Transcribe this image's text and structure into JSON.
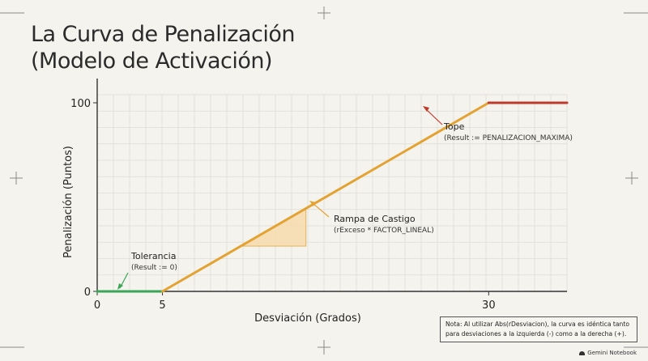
{
  "title_lines": [
    "La Curva de Penalización",
    "(Modelo de Activación)"
  ],
  "chart_data": {
    "type": "line",
    "xlabel": "Desviación (Grados)",
    "ylabel": "Penalización (Puntos)",
    "xlim": [
      0,
      36
    ],
    "ylim": [
      0,
      100
    ],
    "x_ticks": [
      "0",
      "5",
      "30"
    ],
    "y_ticks": [
      "0",
      "100"
    ],
    "grid": true,
    "segments": [
      {
        "name": "Tolerancia",
        "color": "#3aa655",
        "x": [
          0,
          5
        ],
        "y": [
          0,
          0
        ]
      },
      {
        "name": "Rampa de Castigo",
        "color": "#e3a232",
        "x": [
          5,
          30
        ],
        "y": [
          0,
          100
        ]
      },
      {
        "name": "Tope",
        "color": "#c0392b",
        "x": [
          30,
          36
        ],
        "y": [
          100,
          100
        ]
      }
    ],
    "highlight_triangle": {
      "x": [
        11,
        16
      ],
      "y": [
        24,
        44
      ],
      "color": "#f7dcb0"
    },
    "annotations": [
      {
        "title": "Tolerancia",
        "detail": "(Result := 0)",
        "color": "#3aa655"
      },
      {
        "title": "Rampa de Castigo",
        "detail": "(rExceso * FACTOR_LINEAL)",
        "color": "#e3a232"
      },
      {
        "title": "Tope",
        "detail": "(Result := PENALIZACION_MAXIMA)",
        "color": "#c0392b"
      }
    ]
  },
  "note_lines": [
    "Nota: Al utilizar Abs(rDesviacion), la curva es idéntica tanto",
    "para desviaciones a la izquierda (-) como a la derecha (+)."
  ],
  "brand": "Gemini Notebook"
}
